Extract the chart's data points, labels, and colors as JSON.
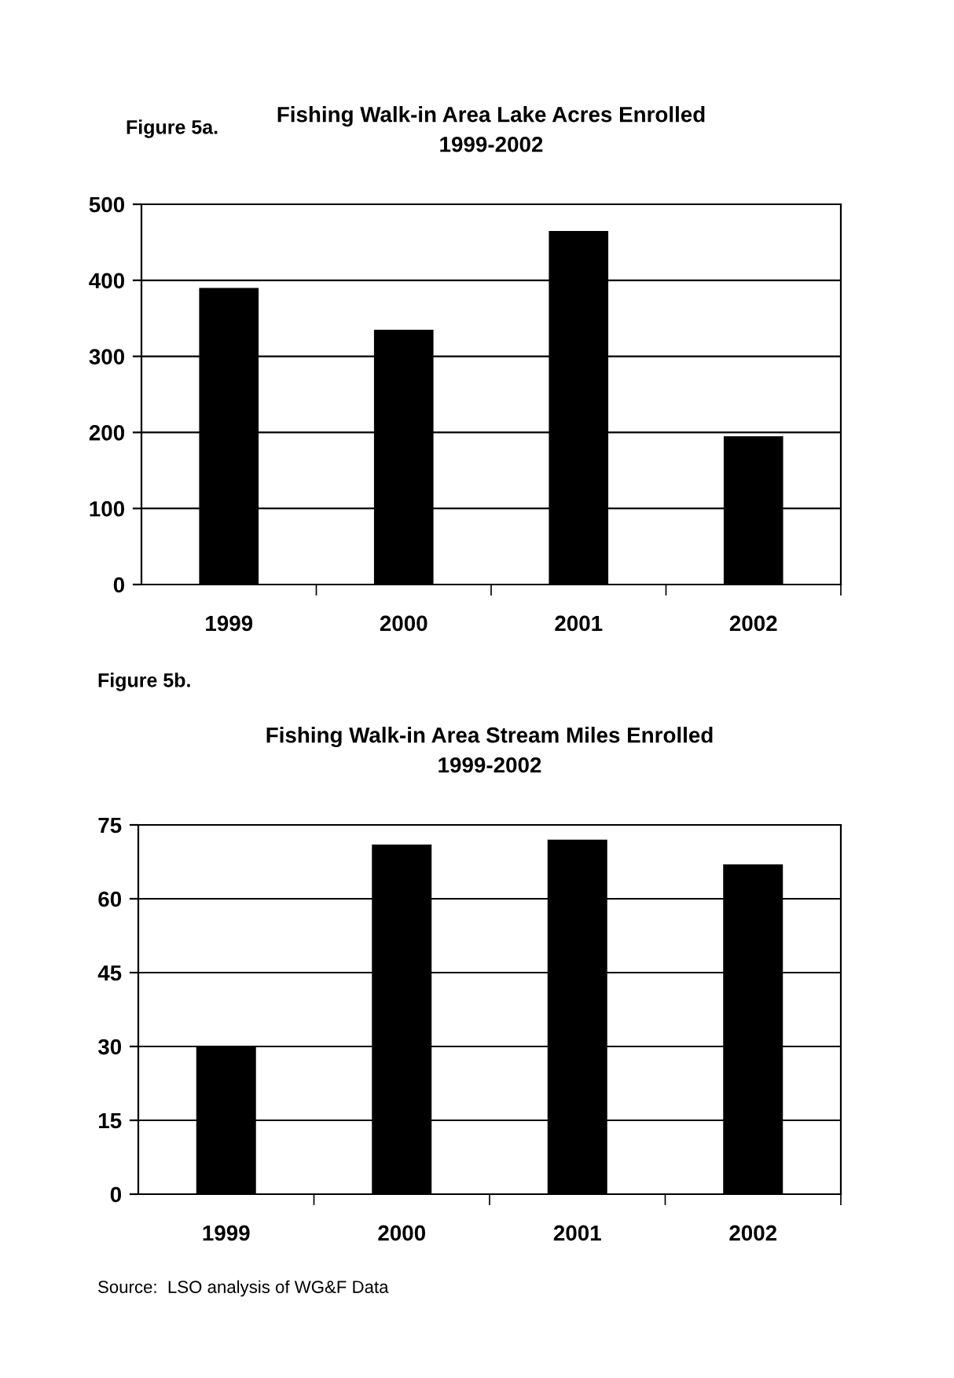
{
  "chart_data": [
    {
      "type": "bar",
      "title": "Fishing Walk-in Area Lake Acres Enrolled\n1999-2002",
      "annotations": [
        "Figure 5a."
      ],
      "categories": [
        "1999",
        "2000",
        "2001",
        "2002"
      ],
      "values": [
        390,
        335,
        465,
        195
      ],
      "color": "#000000",
      "ylim": [
        0,
        500
      ],
      "yticks": [
        0,
        100,
        200,
        300,
        400,
        500
      ],
      "grid": "y"
    },
    {
      "type": "bar",
      "title": "Fishing Walk-in Area Stream Miles Enrolled\n1999-2002",
      "annotations": [
        "Figure 5b.",
        "Source:  LSO analysis of WG&F Data"
      ],
      "categories": [
        "1999",
        "2000",
        "2001",
        "2002"
      ],
      "values": [
        30,
        71,
        72,
        67
      ],
      "color": "#000000",
      "ylim": [
        0,
        75
      ],
      "yticks": [
        0,
        15,
        30,
        45,
        60,
        75
      ],
      "grid": "y"
    }
  ]
}
